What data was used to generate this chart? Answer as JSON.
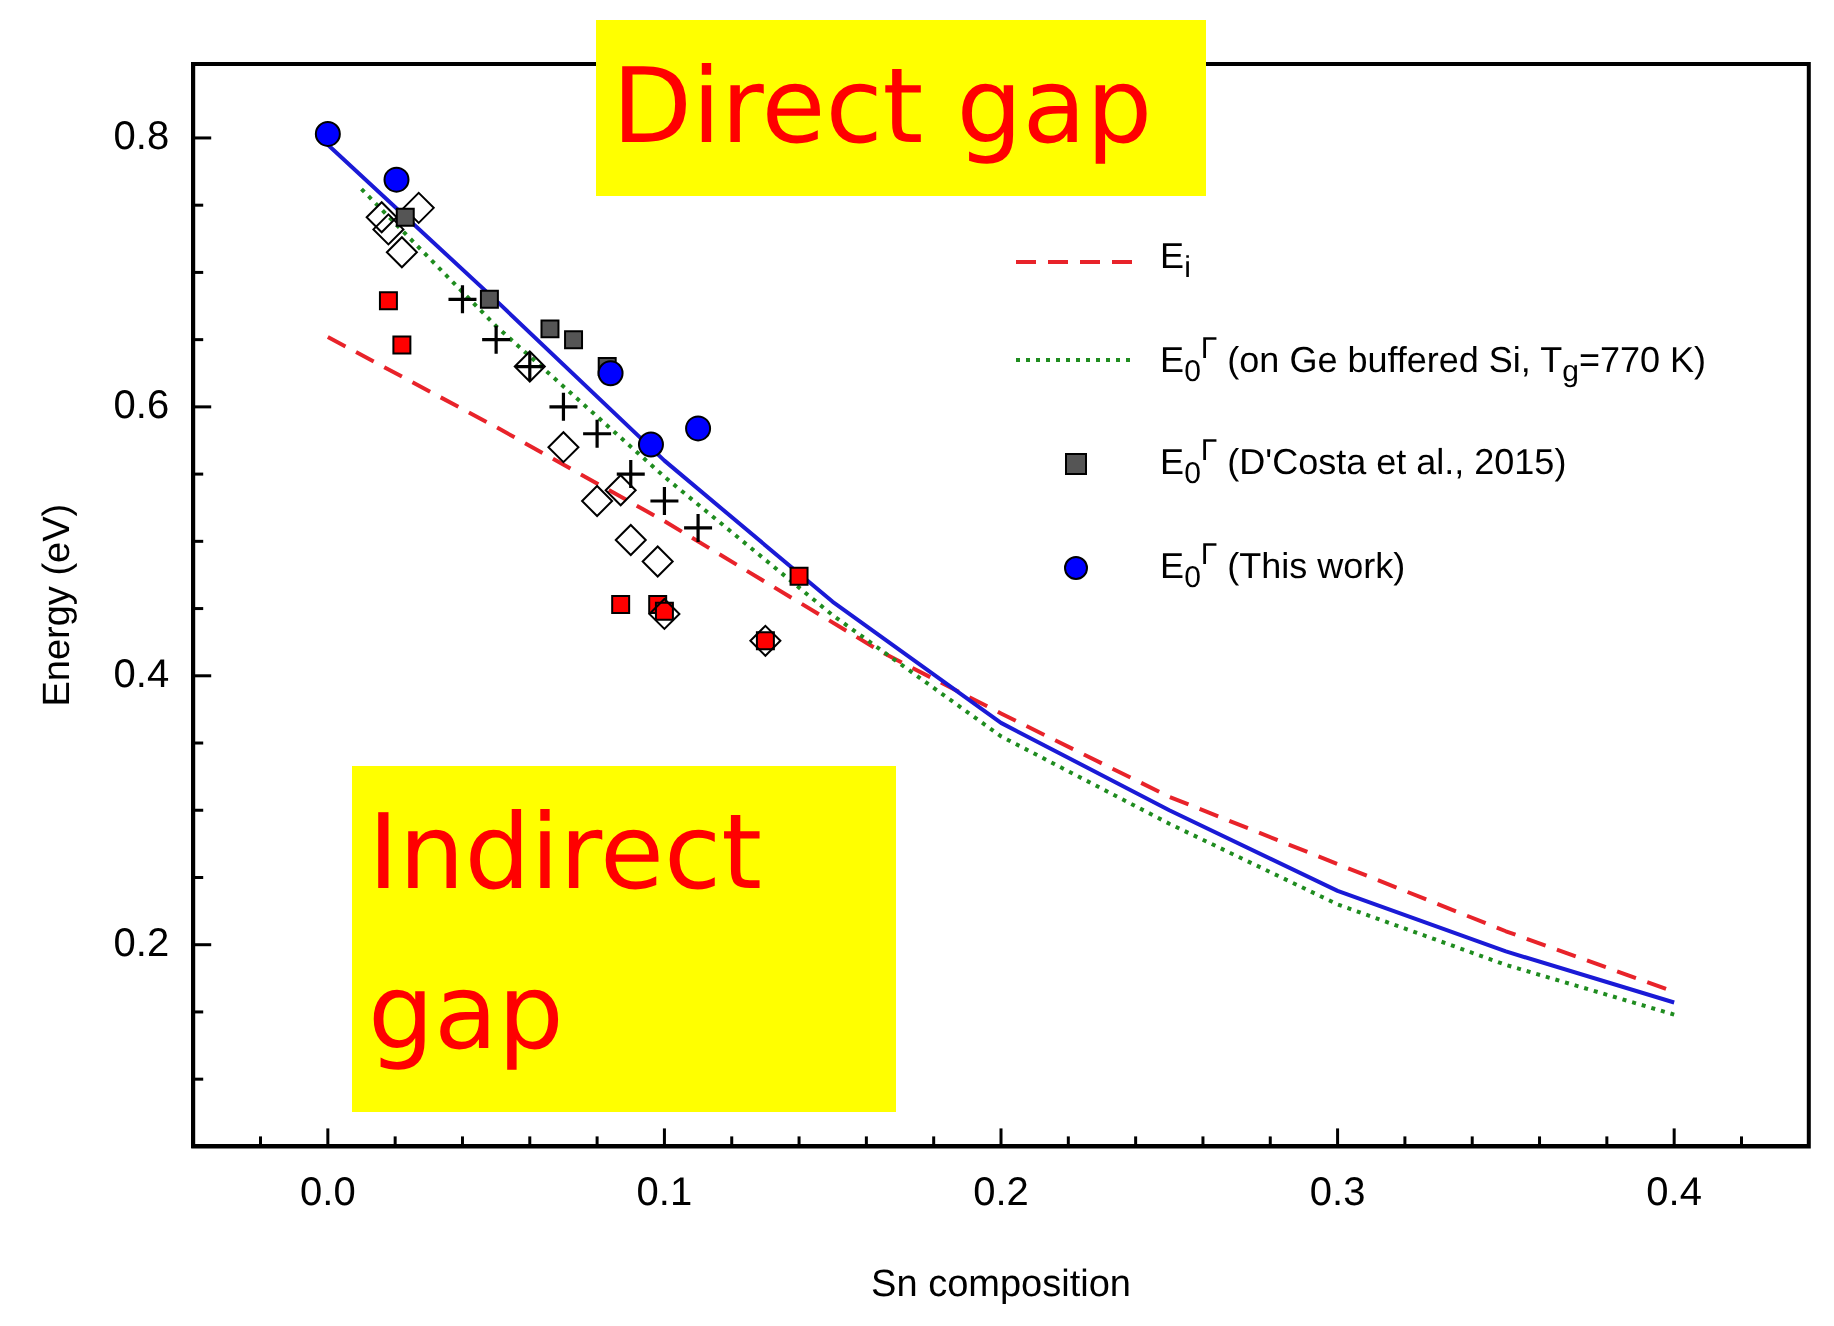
{
  "chart_data": {
    "type": "scatter",
    "xlabel": "Sn composition",
    "ylabel": "Energy (eV)",
    "xlim": [
      -0.04,
      0.44
    ],
    "ylim": [
      0.05,
      0.855
    ],
    "xticks": [
      {
        "value": -0.02,
        "label": null
      },
      {
        "value": 0.0,
        "label": "0.0"
      },
      {
        "value": 0.02,
        "label": null
      },
      {
        "value": 0.04,
        "label": null
      },
      {
        "value": 0.06,
        "label": null
      },
      {
        "value": 0.08,
        "label": null
      },
      0.1,
      {
        "value": 0.12,
        "label": null
      },
      {
        "value": 0.14,
        "label": null
      },
      {
        "value": 0.16,
        "label": null
      },
      {
        "value": 0.18,
        "label": null
      },
      0.2,
      {
        "value": 0.22,
        "label": null
      },
      {
        "value": 0.24,
        "label": null
      },
      {
        "value": 0.26,
        "label": null
      },
      {
        "value": 0.28,
        "label": null
      },
      0.3,
      {
        "value": 0.32,
        "label": null
      },
      {
        "value": 0.34,
        "label": null
      },
      {
        "value": 0.36,
        "label": null
      },
      {
        "value": 0.38,
        "label": null
      },
      0.4,
      {
        "value": 0.42,
        "label": null
      }
    ],
    "yticks": [
      {
        "value": 0.1,
        "label": null
      },
      {
        "value": 0.15,
        "label": null
      },
      0.2,
      {
        "value": 0.25,
        "label": null
      },
      {
        "value": 0.3,
        "label": null
      },
      {
        "value": 0.35,
        "label": null
      },
      0.4,
      {
        "value": 0.45,
        "label": null
      },
      {
        "value": 0.5,
        "label": null
      },
      {
        "value": 0.55,
        "label": null
      },
      0.6,
      {
        "value": 0.65,
        "label": null
      },
      {
        "value": 0.7,
        "label": null
      },
      {
        "value": 0.75,
        "label": null
      },
      0.8
    ],
    "grid": false,
    "legend": "top right",
    "annotations": [
      "Direct gap",
      "Indirect gap"
    ],
    "series": [
      {
        "name": "E$_{i}$",
        "type": "line",
        "color": "#e8232a",
        "line_style": "dashed",
        "marker": "none",
        "x": [
          0.0,
          0.05,
          0.1,
          0.165,
          0.2,
          0.25,
          0.3,
          0.35,
          0.4
        ],
        "values": [
          0.652,
          0.585,
          0.515,
          0.417,
          0.372,
          0.31,
          0.26,
          0.21,
          0.165
        ]
      },
      {
        "type": "line",
        "color": "#1a1ad6",
        "line_style": "solid",
        "marker": "none",
        "x": [
          0.0,
          0.05,
          0.1,
          0.15,
          0.2,
          0.25,
          0.3,
          0.35,
          0.4
        ],
        "values": [
          0.795,
          0.679,
          0.56,
          0.455,
          0.365,
          0.3,
          0.24,
          0.195,
          0.157
        ]
      },
      {
        "name": "E$_{0}$$^{Γ}$ (on Ge buffered Si, T$_{g}$=770 K)",
        "type": "line",
        "color": "#1f8c1f",
        "line_style": "dotted",
        "marker": "none",
        "x": [
          0.01,
          0.05,
          0.1,
          0.15,
          0.2,
          0.25,
          0.3,
          0.35,
          0.4
        ],
        "values": [
          0.762,
          0.66,
          0.548,
          0.445,
          0.355,
          0.29,
          0.23,
          0.185,
          0.148
        ]
      },
      {
        "type": "scatter",
        "color": "#ff0000",
        "marker": "square",
        "x": [
          0.018,
          0.022,
          0.087,
          0.098,
          0.1,
          0.13,
          0.14
        ],
        "values": [
          0.679,
          0.646,
          0.453,
          0.453,
          0.448,
          0.426,
          0.474
        ]
      },
      {
        "type": "scatter",
        "color": "#000000",
        "marker": "diamond",
        "x": [
          0.016,
          0.027,
          0.018,
          0.022,
          0.06,
          0.07,
          0.08,
          0.087,
          0.09,
          0.098,
          0.1,
          0.13
        ],
        "values": [
          0.741,
          0.748,
          0.732,
          0.715,
          0.63,
          0.57,
          0.53,
          0.538,
          0.501,
          0.485,
          0.446,
          0.426
        ]
      },
      {
        "type": "scatter",
        "color": "#000000",
        "marker": "cross",
        "x": [
          0.04,
          0.05,
          0.06,
          0.07,
          0.08,
          0.09,
          0.1,
          0.11
        ],
        "values": [
          0.68,
          0.65,
          0.63,
          0.6,
          0.58,
          0.55,
          0.53,
          0.51
        ]
      },
      {
        "name": "E$_{0}$$^{Γ}$ (D'Costa et al., 2015)",
        "type": "scatter",
        "color": "#555555",
        "marker": "square",
        "x": [
          0.023,
          0.048,
          0.066,
          0.073,
          0.083
        ],
        "values": [
          0.741,
          0.68,
          0.658,
          0.65,
          0.63
        ]
      },
      {
        "name": "E$_{0}$$^{Γ}$ (This work)",
        "type": "scatter",
        "color": "#0000ff",
        "marker": "circle",
        "x": [
          0.0,
          0.0204,
          0.084,
          0.096,
          0.11
        ],
        "values": [
          0.803,
          0.769,
          0.625,
          0.572,
          0.584
        ]
      }
    ]
  }
}
